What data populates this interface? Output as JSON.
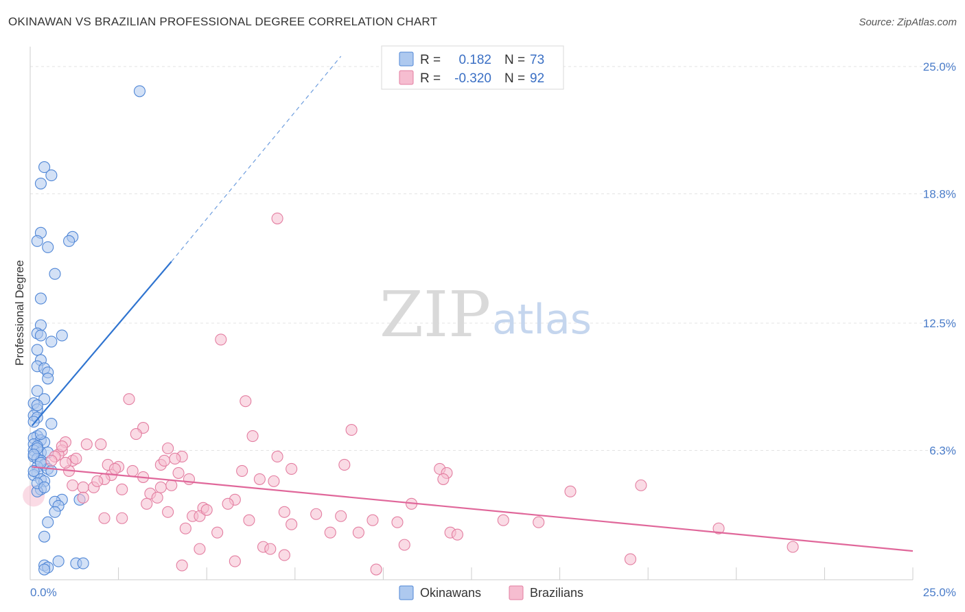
{
  "title": "OKINAWAN VS BRAZILIAN PROFESSIONAL DEGREE CORRELATION CHART",
  "source": "Source: ZipAtlas.com",
  "watermark": {
    "zip": "ZIP",
    "atlas": "atlas"
  },
  "colors": {
    "okinawan_fill": "#aec9ef",
    "okinawan_stroke": "#4f86d6",
    "okinawan_line": "#2f74d0",
    "brazilian_fill": "#f6bdd0",
    "brazilian_stroke": "#e37da0",
    "brazilian_line": "#e0679a",
    "grid": "#e3e3e3",
    "tick_text": "#4a7cc9"
  },
  "legend": {
    "rows": [
      {
        "r_label": "R =",
        "r_value": "0.182",
        "n_label": "N =",
        "n_value": "73"
      },
      {
        "r_label": "R =",
        "r_value": "-0.320",
        "n_label": "N =",
        "n_value": "92"
      }
    ]
  },
  "bottom_legend": [
    "Okinawans",
    "Brazilians"
  ],
  "chart_data": {
    "type": "scatter",
    "title": "OKINAWAN VS BRAZILIAN PROFESSIONAL DEGREE CORRELATION CHART",
    "xlabel": "",
    "ylabel": "Professional Degree",
    "xlim": [
      0,
      25
    ],
    "ylim": [
      0,
      25
    ],
    "x_tick_labels": [
      "0.0%",
      "25.0%"
    ],
    "y_tick_labels": [
      "6.3%",
      "12.5%",
      "18.8%",
      "25.0%"
    ],
    "y_tick_values": [
      6.3,
      12.5,
      18.8,
      25.0
    ],
    "grid": true,
    "series": [
      {
        "name": "Okinawans",
        "trend": {
          "x_start": 0.05,
          "y_start": 7.5,
          "x_end": 4.0,
          "y_end": 15.5,
          "dashed_to_x": 8.8,
          "dashed_to_y": 25.5
        },
        "points": [
          [
            3.1,
            23.8
          ],
          [
            0.4,
            20.1
          ],
          [
            0.6,
            19.7
          ],
          [
            0.3,
            19.3
          ],
          [
            0.3,
            16.9
          ],
          [
            1.2,
            16.7
          ],
          [
            1.1,
            16.5
          ],
          [
            0.2,
            16.5
          ],
          [
            0.5,
            16.2
          ],
          [
            0.7,
            14.9
          ],
          [
            0.3,
            13.7
          ],
          [
            0.3,
            12.4
          ],
          [
            0.2,
            12.0
          ],
          [
            0.3,
            11.9
          ],
          [
            0.9,
            11.9
          ],
          [
            0.6,
            11.6
          ],
          [
            0.2,
            11.2
          ],
          [
            0.3,
            10.7
          ],
          [
            0.2,
            10.4
          ],
          [
            0.4,
            10.3
          ],
          [
            0.5,
            10.1
          ],
          [
            0.5,
            9.8
          ],
          [
            0.2,
            9.2
          ],
          [
            0.4,
            8.8
          ],
          [
            0.1,
            8.6
          ],
          [
            0.2,
            8.3
          ],
          [
            0.1,
            8.0
          ],
          [
            0.2,
            7.9
          ],
          [
            0.6,
            7.6
          ],
          [
            0.1,
            7.7
          ],
          [
            0.2,
            7.0
          ],
          [
            0.1,
            6.9
          ],
          [
            0.3,
            6.8
          ],
          [
            0.4,
            6.7
          ],
          [
            0.1,
            6.6
          ],
          [
            0.2,
            6.5
          ],
          [
            0.1,
            6.3
          ],
          [
            0.3,
            6.2
          ],
          [
            0.5,
            6.2
          ],
          [
            0.1,
            6.0
          ],
          [
            0.2,
            5.9
          ],
          [
            0.3,
            5.8
          ],
          [
            0.4,
            5.6
          ],
          [
            0.2,
            5.5
          ],
          [
            0.5,
            5.4
          ],
          [
            0.2,
            5.2
          ],
          [
            0.1,
            5.1
          ],
          [
            0.3,
            4.9
          ],
          [
            0.4,
            4.8
          ],
          [
            0.3,
            4.4
          ],
          [
            0.2,
            4.3
          ],
          [
            0.9,
            3.9
          ],
          [
            0.7,
            3.8
          ],
          [
            0.8,
            3.6
          ],
          [
            0.7,
            3.3
          ],
          [
            1.4,
            3.9
          ],
          [
            0.5,
            2.8
          ],
          [
            0.4,
            2.1
          ],
          [
            0.8,
            0.9
          ],
          [
            0.4,
            0.7
          ],
          [
            0.5,
            0.6
          ],
          [
            0.4,
            0.5
          ],
          [
            1.3,
            0.8
          ],
          [
            1.5,
            0.8
          ],
          [
            0.2,
            6.4
          ],
          [
            0.1,
            6.1
          ],
          [
            0.3,
            5.7
          ],
          [
            0.6,
            5.3
          ],
          [
            0.2,
            4.7
          ],
          [
            0.4,
            4.5
          ],
          [
            0.1,
            5.3
          ],
          [
            0.3,
            7.1
          ],
          [
            0.2,
            8.5
          ]
        ]
      },
      {
        "name": "Brazilians",
        "trend": {
          "x_start": 0.05,
          "y_start": 5.5,
          "x_end": 25.0,
          "y_end": 1.4
        },
        "points": [
          [
            7.0,
            17.6
          ],
          [
            5.4,
            11.7
          ],
          [
            6.1,
            8.7
          ],
          [
            2.8,
            8.8
          ],
          [
            3.2,
            7.4
          ],
          [
            3.0,
            7.1
          ],
          [
            9.1,
            7.3
          ],
          [
            6.3,
            7.0
          ],
          [
            1.0,
            6.7
          ],
          [
            1.6,
            6.6
          ],
          [
            2.0,
            6.6
          ],
          [
            3.9,
            6.4
          ],
          [
            0.9,
            6.3
          ],
          [
            0.8,
            6.1
          ],
          [
            4.3,
            6.0
          ],
          [
            4.1,
            5.9
          ],
          [
            7.0,
            6.0
          ],
          [
            1.2,
            5.8
          ],
          [
            2.2,
            5.6
          ],
          [
            2.5,
            5.5
          ],
          [
            3.7,
            5.6
          ],
          [
            8.9,
            5.6
          ],
          [
            7.4,
            5.4
          ],
          [
            11.6,
            5.4
          ],
          [
            6.0,
            5.3
          ],
          [
            1.1,
            5.3
          ],
          [
            2.3,
            5.1
          ],
          [
            3.2,
            5.0
          ],
          [
            4.2,
            5.2
          ],
          [
            11.8,
            5.2
          ],
          [
            2.1,
            4.9
          ],
          [
            6.5,
            4.9
          ],
          [
            4.5,
            4.9
          ],
          [
            6.9,
            4.8
          ],
          [
            11.7,
            4.9
          ],
          [
            1.2,
            4.6
          ],
          [
            1.5,
            4.5
          ],
          [
            1.8,
            4.5
          ],
          [
            2.6,
            4.4
          ],
          [
            3.4,
            4.2
          ],
          [
            3.7,
            4.5
          ],
          [
            15.3,
            4.3
          ],
          [
            17.3,
            4.6
          ],
          [
            1.5,
            4.0
          ],
          [
            3.6,
            4.0
          ],
          [
            5.8,
            3.9
          ],
          [
            5.6,
            3.7
          ],
          [
            3.3,
            3.7
          ],
          [
            10.8,
            3.7
          ],
          [
            4.9,
            3.5
          ],
          [
            3.9,
            3.3
          ],
          [
            7.2,
            3.3
          ],
          [
            8.1,
            3.2
          ],
          [
            8.8,
            3.1
          ],
          [
            4.6,
            3.1
          ],
          [
            4.8,
            3.1
          ],
          [
            2.1,
            3.0
          ],
          [
            2.6,
            3.0
          ],
          [
            9.7,
            2.9
          ],
          [
            13.4,
            2.9
          ],
          [
            14.4,
            2.8
          ],
          [
            10.4,
            2.8
          ],
          [
            7.4,
            2.7
          ],
          [
            4.4,
            2.5
          ],
          [
            5.3,
            2.3
          ],
          [
            8.5,
            2.3
          ],
          [
            9.3,
            2.3
          ],
          [
            11.9,
            2.3
          ],
          [
            12.1,
            2.2
          ],
          [
            19.5,
            2.5
          ],
          [
            10.6,
            1.7
          ],
          [
            6.6,
            1.6
          ],
          [
            6.8,
            1.5
          ],
          [
            4.8,
            1.5
          ],
          [
            7.2,
            1.2
          ],
          [
            5.8,
            0.9
          ],
          [
            17.0,
            1.0
          ],
          [
            21.6,
            1.6
          ],
          [
            4.3,
            0.7
          ],
          [
            9.8,
            0.5
          ],
          [
            0.7,
            6.0
          ],
          [
            1.3,
            5.9
          ],
          [
            2.4,
            5.4
          ],
          [
            0.6,
            5.8
          ],
          [
            1.0,
            5.7
          ],
          [
            1.9,
            4.8
          ],
          [
            0.9,
            6.5
          ],
          [
            3.8,
            5.8
          ],
          [
            2.9,
            5.3
          ],
          [
            4.0,
            4.6
          ],
          [
            5.0,
            3.4
          ],
          [
            6.2,
            2.9
          ]
        ]
      }
    ]
  }
}
